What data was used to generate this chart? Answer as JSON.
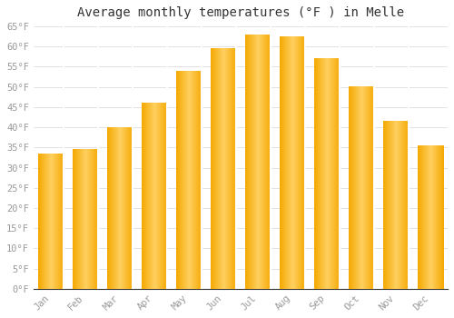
{
  "title": "Average monthly temperatures (°F ) in Melle",
  "months": [
    "Jan",
    "Feb",
    "Mar",
    "Apr",
    "May",
    "Jun",
    "Jul",
    "Aug",
    "Sep",
    "Oct",
    "Nov",
    "Dec"
  ],
  "values": [
    33.5,
    34.5,
    40.0,
    46.0,
    54.0,
    59.5,
    63.0,
    62.5,
    57.0,
    50.0,
    41.5,
    35.5
  ],
  "bar_color_outer": "#F5A800",
  "bar_color_inner": "#FFD060",
  "background_color": "#FFFFFF",
  "grid_color": "#DDDDDD",
  "text_color": "#999999",
  "ylim": [
    0,
    65
  ],
  "yticks": [
    0,
    5,
    10,
    15,
    20,
    25,
    30,
    35,
    40,
    45,
    50,
    55,
    60,
    65
  ],
  "title_fontsize": 10,
  "tick_fontsize": 7.5
}
